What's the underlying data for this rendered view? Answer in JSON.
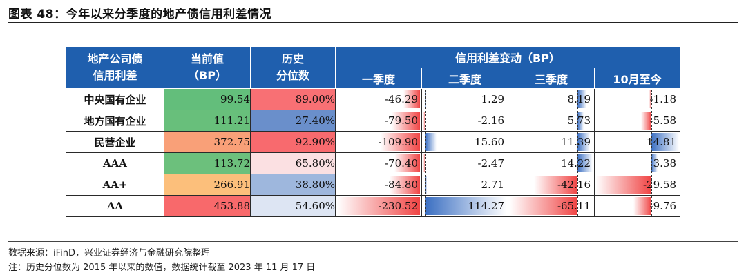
{
  "figure_title": "图表 48：今年以来分季度的地产债信用利差情况",
  "headers": {
    "col1": [
      "地产公司债",
      "信用利差"
    ],
    "col2": [
      "当前值",
      "（BP）"
    ],
    "col3": [
      "历史",
      "分位数"
    ],
    "group": "信用利差变动（BP）",
    "periods": [
      "一季度",
      "二季度",
      "三季度",
      "10月至今"
    ]
  },
  "rows": [
    {
      "label": "中央国有企业",
      "current": "99.54",
      "percentile": "89.00%",
      "q1": "-46.29",
      "q2": "1.29",
      "q3": "8.19",
      "oct": "-1.18",
      "current_color": "#63be7b",
      "percentile_color": "#f87074"
    },
    {
      "label": "地方国有企业",
      "current": "111.21",
      "percentile": "27.40%",
      "q1": "-79.50",
      "q2": "-2.16",
      "q3": "5.73",
      "oct": "-5.58",
      "current_color": "#68bf7b",
      "percentile_color": "#6a8fcb"
    },
    {
      "label": "民营企业",
      "current": "372.75",
      "percentile": "92.90%",
      "q1": "-109.90",
      "q2": "15.60",
      "q3": "11.39",
      "oct": "14.81",
      "current_color": "#f9a078",
      "percentile_color": "#f86a6e"
    },
    {
      "label": "AAA",
      "current": "113.72",
      "percentile": "65.80%",
      "q1": "-70.40",
      "q2": "-2.47",
      "q3": "14.22",
      "oct": "3.38",
      "current_color": "#6cc07c",
      "percentile_color": "#fbe0e2"
    },
    {
      "label": "AA+",
      "current": "266.91",
      "percentile": "38.80%",
      "q1": "-84.80",
      "q2": "2.71",
      "q3": "-42.16",
      "oct": "-29.58",
      "current_color": "#fcbf7b",
      "percentile_color": "#9eb7dd"
    },
    {
      "label": "AA",
      "current": "453.88",
      "percentile": "54.60%",
      "q1": "-230.52",
      "q2": "114.27",
      "q3": "-65.11",
      "oct": "-9.76",
      "current_color": "#f8696b",
      "percentile_color": "#dde5f3"
    }
  ],
  "source": "数据来源：iFinD，兴业证券经济与金融研究院整理",
  "footnote": "注：历史分位数为 2015 年以来的数值，数据统计截至 2023 年 11 月 17 日"
}
